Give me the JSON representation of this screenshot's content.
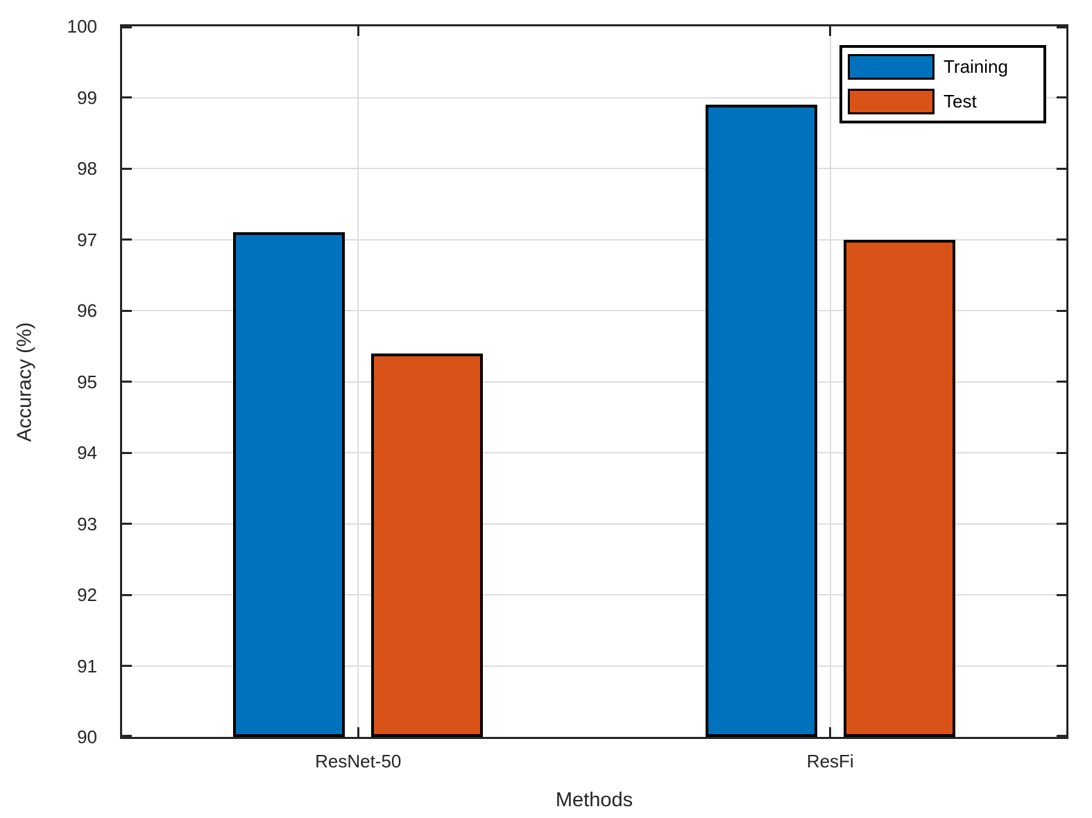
{
  "chart_data": {
    "type": "bar",
    "title": "",
    "xlabel": "Methods",
    "ylabel": "Accuracy (%)",
    "categories": [
      "ResNet-50",
      "ResFi"
    ],
    "series": [
      {
        "name": "Training",
        "color": "#0072BD",
        "values": [
          97.1,
          98.9
        ]
      },
      {
        "name": "Test",
        "color": "#D95319",
        "values": [
          95.4,
          97.0
        ]
      }
    ],
    "ylim": [
      90,
      100
    ],
    "yticks": [
      90,
      91,
      92,
      93,
      94,
      95,
      96,
      97,
      98,
      99,
      100
    ],
    "grid": true,
    "legend": {
      "position": "top-right",
      "items": [
        "Training",
        "Test"
      ]
    },
    "colors": {
      "axis": "#262626",
      "grid": "#dedede",
      "bar_edge": "#000000",
      "text": "#262626",
      "legend_border": "#000000",
      "background": "#ffffff"
    }
  }
}
